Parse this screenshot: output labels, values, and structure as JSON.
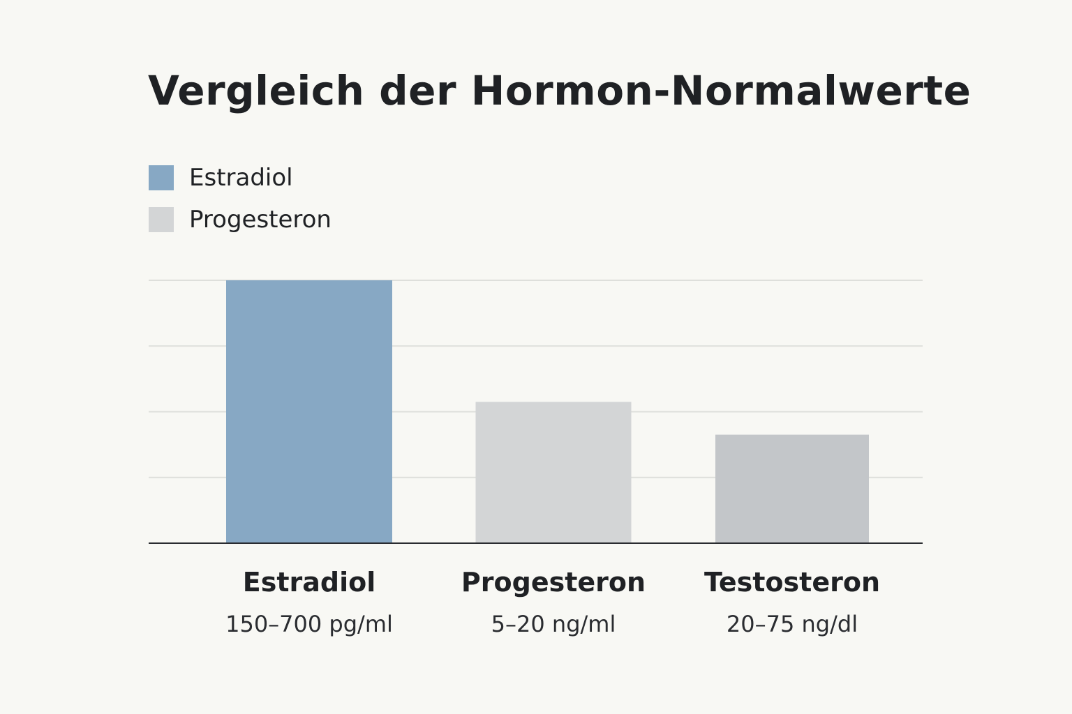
{
  "chart_data": {
    "type": "bar",
    "title": "Vergleich der Hormon-Normalwerte",
    "categories": [
      "Estradiol",
      "Progesteron",
      "Testosteron"
    ],
    "range_labels": [
      "150–700 pg/ml",
      "5–20 ng/ml",
      "20–75 ng/dl"
    ],
    "values": [
      4.0,
      2.15,
      1.65
    ],
    "bar_colors": [
      "#87a8c4",
      "#d3d5d6",
      "#c3c6c9"
    ],
    "ylim": [
      0,
      4
    ],
    "gridlines": [
      1,
      2,
      3,
      4
    ],
    "grid": true,
    "legend": {
      "placement": "top-left",
      "entries": [
        {
          "label": "Estradiol",
          "color": "#87a8c4"
        },
        {
          "label": "Progesteron",
          "color": "#d3d5d6"
        }
      ]
    },
    "xlabel": "",
    "ylabel": ""
  }
}
